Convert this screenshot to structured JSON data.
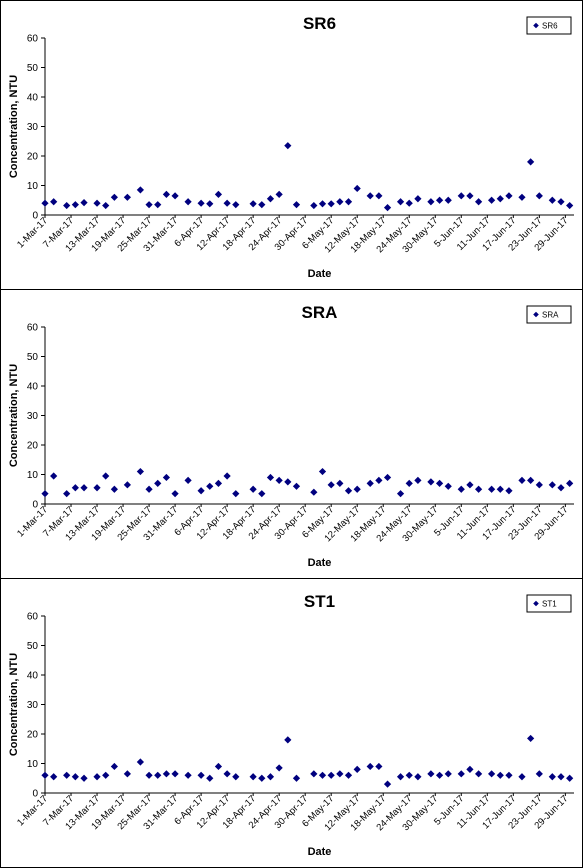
{
  "chart_data": [
    {
      "type": "scatter",
      "title": "SR6",
      "xlabel": "Date",
      "ylabel": "Concentration, NTU",
      "ylim": [
        0,
        60
      ],
      "yticks": [
        0,
        10,
        20,
        30,
        40,
        50,
        60
      ],
      "xlim": [
        "2017-03-01",
        "2017-07-01"
      ],
      "xtick_labels": [
        "1-Mar-17",
        "7-Mar-17",
        "13-Mar-17",
        "19-Mar-17",
        "25-Mar-17",
        "31-Mar-17",
        "6-Apr-17",
        "12-Apr-17",
        "18-Apr-17",
        "24-Apr-17",
        "30-Apr-17",
        "6-May-17",
        "12-May-17",
        "18-May-17",
        "24-May-17",
        "30-May-17",
        "5-Jun-17",
        "11-Jun-17",
        "17-Jun-17",
        "23-Jun-17",
        "29-Jun-17"
      ],
      "legend": "top-right",
      "series": [
        {
          "name": "SR6",
          "color": "#00007f",
          "points": [
            [
              "2017-03-01",
              4.0
            ],
            [
              "2017-03-03",
              4.5
            ],
            [
              "2017-03-06",
              3.2
            ],
            [
              "2017-03-08",
              3.5
            ],
            [
              "2017-03-10",
              4.2
            ],
            [
              "2017-03-13",
              4.0
            ],
            [
              "2017-03-15",
              3.2
            ],
            [
              "2017-03-17",
              6.0
            ],
            [
              "2017-03-20",
              6.0
            ],
            [
              "2017-03-23",
              8.5
            ],
            [
              "2017-03-25",
              3.5
            ],
            [
              "2017-03-27",
              3.5
            ],
            [
              "2017-03-29",
              7.0
            ],
            [
              "2017-03-31",
              6.5
            ],
            [
              "2017-04-03",
              4.5
            ],
            [
              "2017-04-06",
              4.0
            ],
            [
              "2017-04-08",
              3.8
            ],
            [
              "2017-04-10",
              7.0
            ],
            [
              "2017-04-12",
              4.0
            ],
            [
              "2017-04-14",
              3.5
            ],
            [
              "2017-04-18",
              3.8
            ],
            [
              "2017-04-20",
              3.5
            ],
            [
              "2017-04-22",
              5.5
            ],
            [
              "2017-04-24",
              7.0
            ],
            [
              "2017-04-26",
              23.5
            ],
            [
              "2017-04-28",
              3.5
            ],
            [
              "2017-05-02",
              3.2
            ],
            [
              "2017-05-04",
              3.8
            ],
            [
              "2017-05-06",
              3.8
            ],
            [
              "2017-05-08",
              4.5
            ],
            [
              "2017-05-10",
              4.5
            ],
            [
              "2017-05-12",
              9.0
            ],
            [
              "2017-05-15",
              6.5
            ],
            [
              "2017-05-17",
              6.5
            ],
            [
              "2017-05-19",
              2.5
            ],
            [
              "2017-05-22",
              4.5
            ],
            [
              "2017-05-24",
              4.0
            ],
            [
              "2017-05-26",
              5.5
            ],
            [
              "2017-05-29",
              4.5
            ],
            [
              "2017-05-31",
              5.0
            ],
            [
              "2017-06-02",
              5.0
            ],
            [
              "2017-06-05",
              6.5
            ],
            [
              "2017-06-07",
              6.5
            ],
            [
              "2017-06-09",
              4.5
            ],
            [
              "2017-06-12",
              5.0
            ],
            [
              "2017-06-14",
              5.5
            ],
            [
              "2017-06-16",
              6.5
            ],
            [
              "2017-06-19",
              6.0
            ],
            [
              "2017-06-21",
              18.0
            ],
            [
              "2017-06-23",
              6.5
            ],
            [
              "2017-06-26",
              5.0
            ],
            [
              "2017-06-28",
              4.5
            ],
            [
              "2017-06-30",
              3.2
            ]
          ]
        }
      ]
    },
    {
      "type": "scatter",
      "title": "SRA",
      "xlabel": "Date",
      "ylabel": "Concentration, NTU",
      "ylim": [
        0,
        60
      ],
      "yticks": [
        0,
        10,
        20,
        30,
        40,
        50,
        60
      ],
      "xlim": [
        "2017-03-01",
        "2017-07-01"
      ],
      "xtick_labels": [
        "1-Mar-17",
        "7-Mar-17",
        "13-Mar-17",
        "19-Mar-17",
        "25-Mar-17",
        "31-Mar-17",
        "6-Apr-17",
        "12-Apr-17",
        "18-Apr-17",
        "24-Apr-17",
        "30-Apr-17",
        "6-May-17",
        "12-May-17",
        "18-May-17",
        "24-May-17",
        "30-May-17",
        "5-Jun-17",
        "11-Jun-17",
        "17-Jun-17",
        "23-Jun-17",
        "29-Jun-17"
      ],
      "legend": "top-right",
      "series": [
        {
          "name": "SRA",
          "color": "#00007f",
          "points": [
            [
              "2017-03-01",
              3.5
            ],
            [
              "2017-03-03",
              9.5
            ],
            [
              "2017-03-06",
              3.5
            ],
            [
              "2017-03-08",
              5.5
            ],
            [
              "2017-03-10",
              5.5
            ],
            [
              "2017-03-13",
              5.5
            ],
            [
              "2017-03-15",
              9.5
            ],
            [
              "2017-03-17",
              5.0
            ],
            [
              "2017-03-20",
              6.5
            ],
            [
              "2017-03-23",
              11.0
            ],
            [
              "2017-03-25",
              5.0
            ],
            [
              "2017-03-27",
              7.0
            ],
            [
              "2017-03-29",
              9.0
            ],
            [
              "2017-03-31",
              3.5
            ],
            [
              "2017-04-03",
              8.0
            ],
            [
              "2017-04-06",
              4.5
            ],
            [
              "2017-04-08",
              6.0
            ],
            [
              "2017-04-10",
              7.0
            ],
            [
              "2017-04-12",
              9.5
            ],
            [
              "2017-04-14",
              3.5
            ],
            [
              "2017-04-18",
              5.0
            ],
            [
              "2017-04-20",
              3.5
            ],
            [
              "2017-04-22",
              9.0
            ],
            [
              "2017-04-24",
              8.0
            ],
            [
              "2017-04-26",
              7.5
            ],
            [
              "2017-04-28",
              6.0
            ],
            [
              "2017-05-02",
              4.0
            ],
            [
              "2017-05-04",
              11.0
            ],
            [
              "2017-05-06",
              6.5
            ],
            [
              "2017-05-08",
              7.0
            ],
            [
              "2017-05-10",
              4.5
            ],
            [
              "2017-05-12",
              5.0
            ],
            [
              "2017-05-15",
              7.0
            ],
            [
              "2017-05-17",
              8.0
            ],
            [
              "2017-05-19",
              9.0
            ],
            [
              "2017-05-22",
              3.5
            ],
            [
              "2017-05-24",
              7.0
            ],
            [
              "2017-05-26",
              8.0
            ],
            [
              "2017-05-29",
              7.5
            ],
            [
              "2017-05-31",
              7.0
            ],
            [
              "2017-06-02",
              6.0
            ],
            [
              "2017-06-05",
              5.0
            ],
            [
              "2017-06-07",
              6.5
            ],
            [
              "2017-06-09",
              5.0
            ],
            [
              "2017-06-12",
              5.0
            ],
            [
              "2017-06-14",
              5.0
            ],
            [
              "2017-06-16",
              4.5
            ],
            [
              "2017-06-19",
              8.0
            ],
            [
              "2017-06-21",
              8.0
            ],
            [
              "2017-06-23",
              6.5
            ],
            [
              "2017-06-26",
              6.5
            ],
            [
              "2017-06-28",
              5.5
            ],
            [
              "2017-06-30",
              7.0
            ]
          ]
        }
      ]
    },
    {
      "type": "scatter",
      "title": "ST1",
      "xlabel": "Date",
      "ylabel": "Concentration, NTU",
      "ylim": [
        0,
        60
      ],
      "yticks": [
        0,
        10,
        20,
        30,
        40,
        50,
        60
      ],
      "xlim": [
        "2017-03-01",
        "2017-07-01"
      ],
      "xtick_labels": [
        "1-Mar-17",
        "7-Mar-17",
        "13-Mar-17",
        "19-Mar-17",
        "25-Mar-17",
        "31-Mar-17",
        "6-Apr-17",
        "12-Apr-17",
        "18-Apr-17",
        "24-Apr-17",
        "30-Apr-17",
        "6-May-17",
        "12-May-17",
        "18-May-17",
        "24-May-17",
        "30-May-17",
        "5-Jun-17",
        "11-Jun-17",
        "17-Jun-17",
        "23-Jun-17",
        "29-Jun-17"
      ],
      "legend": "top-right",
      "series": [
        {
          "name": "ST1",
          "color": "#00007f",
          "points": [
            [
              "2017-03-01",
              6.0
            ],
            [
              "2017-03-03",
              5.5
            ],
            [
              "2017-03-06",
              6.0
            ],
            [
              "2017-03-08",
              5.5
            ],
            [
              "2017-03-10",
              5.0
            ],
            [
              "2017-03-13",
              5.5
            ],
            [
              "2017-03-15",
              6.0
            ],
            [
              "2017-03-17",
              9.0
            ],
            [
              "2017-03-20",
              6.5
            ],
            [
              "2017-03-23",
              10.5
            ],
            [
              "2017-03-25",
              6.0
            ],
            [
              "2017-03-27",
              6.0
            ],
            [
              "2017-03-29",
              6.5
            ],
            [
              "2017-03-31",
              6.5
            ],
            [
              "2017-04-03",
              6.0
            ],
            [
              "2017-04-06",
              6.0
            ],
            [
              "2017-04-08",
              5.0
            ],
            [
              "2017-04-10",
              9.0
            ],
            [
              "2017-04-12",
              6.5
            ],
            [
              "2017-04-14",
              5.5
            ],
            [
              "2017-04-18",
              5.5
            ],
            [
              "2017-04-20",
              5.0
            ],
            [
              "2017-04-22",
              5.5
            ],
            [
              "2017-04-24",
              8.5
            ],
            [
              "2017-04-26",
              18.0
            ],
            [
              "2017-04-28",
              5.0
            ],
            [
              "2017-05-02",
              6.5
            ],
            [
              "2017-05-04",
              6.0
            ],
            [
              "2017-05-06",
              6.0
            ],
            [
              "2017-05-08",
              6.5
            ],
            [
              "2017-05-10",
              6.0
            ],
            [
              "2017-05-12",
              8.0
            ],
            [
              "2017-05-15",
              9.0
            ],
            [
              "2017-05-17",
              9.0
            ],
            [
              "2017-05-19",
              3.0
            ],
            [
              "2017-05-22",
              5.5
            ],
            [
              "2017-05-24",
              6.0
            ],
            [
              "2017-05-26",
              5.5
            ],
            [
              "2017-05-29",
              6.5
            ],
            [
              "2017-05-31",
              6.0
            ],
            [
              "2017-06-02",
              6.5
            ],
            [
              "2017-06-05",
              6.5
            ],
            [
              "2017-06-07",
              8.0
            ],
            [
              "2017-06-09",
              6.5
            ],
            [
              "2017-06-12",
              6.5
            ],
            [
              "2017-06-14",
              6.0
            ],
            [
              "2017-06-16",
              6.0
            ],
            [
              "2017-06-19",
              5.5
            ],
            [
              "2017-06-21",
              18.5
            ],
            [
              "2017-06-23",
              6.5
            ],
            [
              "2017-06-26",
              5.5
            ],
            [
              "2017-06-28",
              5.5
            ],
            [
              "2017-06-30",
              5.0
            ]
          ]
        }
      ]
    }
  ]
}
